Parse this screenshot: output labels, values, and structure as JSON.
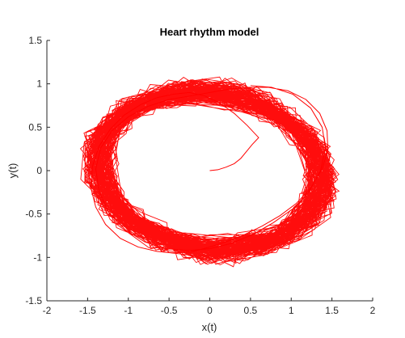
{
  "chart_data": {
    "type": "line",
    "title": "Heart rhythm model",
    "xlabel": "x(t)",
    "ylabel": "y(t)",
    "xlim": [
      -2,
      2
    ],
    "ylim": [
      -1.5,
      1.5
    ],
    "xticks": [
      -2,
      -1.5,
      -1,
      -0.5,
      0,
      0.5,
      1,
      1.5,
      2
    ],
    "xtick_labels": [
      "-2",
      "-1.5",
      "-1",
      "-0.5",
      "0",
      "0.5",
      "1",
      "1.5",
      "2"
    ],
    "yticks": [
      -1.5,
      -1,
      -0.5,
      0,
      0.5,
      1,
      1.5
    ],
    "ytick_labels": [
      "-1.5",
      "-1",
      "-0.5",
      "0",
      "0.5",
      "1",
      "1.5"
    ],
    "grid": false,
    "box": "left-bottom axes only",
    "series": [
      {
        "color": "#ff0000",
        "points": [
          [
            0.0,
            0.0
          ],
          [
            0.1,
            0.01
          ],
          [
            0.2,
            0.04
          ],
          [
            0.3,
            0.08
          ],
          [
            0.38,
            0.14
          ],
          [
            0.45,
            0.22
          ],
          [
            0.52,
            0.3
          ],
          [
            0.6,
            0.38
          ],
          [
            0.46,
            0.52
          ],
          [
            0.3,
            0.66
          ],
          [
            0.12,
            0.78
          ],
          [
            -0.06,
            0.86
          ],
          [
            -0.25,
            0.9
          ],
          [
            -0.45,
            0.88
          ],
          [
            -0.65,
            0.84
          ],
          [
            -0.85,
            0.76
          ],
          [
            -1.05,
            0.64
          ],
          [
            -1.22,
            0.48
          ],
          [
            -1.36,
            0.28
          ],
          [
            -1.44,
            0.05
          ],
          [
            -1.46,
            -0.2
          ],
          [
            -1.4,
            -0.42
          ],
          [
            -1.28,
            -0.62
          ],
          [
            -1.1,
            -0.78
          ],
          [
            -0.88,
            -0.88
          ],
          [
            -0.65,
            -0.93
          ],
          [
            -0.42,
            -0.95
          ],
          [
            -0.2,
            -0.93
          ],
          [
            0.0,
            -0.88
          ],
          [
            0.2,
            -0.82
          ],
          [
            0.42,
            -0.74
          ],
          [
            0.64,
            -0.64
          ],
          [
            0.86,
            -0.52
          ],
          [
            1.06,
            -0.38
          ],
          [
            1.24,
            -0.2
          ],
          [
            1.38,
            0.02
          ],
          [
            1.45,
            0.24
          ],
          [
            1.44,
            0.46
          ],
          [
            1.35,
            0.66
          ],
          [
            1.18,
            0.82
          ],
          [
            0.96,
            0.92
          ],
          [
            0.72,
            0.96
          ],
          [
            0.48,
            0.96
          ],
          [
            0.24,
            0.94
          ],
          [
            0.0,
            0.9
          ],
          [
            -0.24,
            0.86
          ],
          [
            -0.5,
            0.82
          ],
          [
            -0.76,
            0.74
          ],
          [
            -1.0,
            0.62
          ],
          [
            -1.2,
            0.46
          ],
          [
            -1.34,
            0.26
          ],
          [
            -1.4,
            0.02
          ],
          [
            -1.36,
            -0.24
          ],
          [
            -1.24,
            -0.48
          ],
          [
            -1.04,
            -0.68
          ],
          [
            -0.8,
            -0.82
          ],
          [
            -0.54,
            -0.9
          ],
          [
            -0.26,
            -0.92
          ],
          [
            0.0,
            -0.9
          ],
          [
            0.26,
            -0.84
          ],
          [
            0.52,
            -0.74
          ],
          [
            0.78,
            -0.6
          ],
          [
            1.02,
            -0.44
          ],
          [
            1.22,
            -0.24
          ],
          [
            1.36,
            0.0
          ],
          [
            1.42,
            0.26
          ],
          [
            1.38,
            0.5
          ],
          [
            1.24,
            0.72
          ],
          [
            1.02,
            0.88
          ],
          [
            0.76,
            0.96
          ],
          [
            0.5,
            0.98
          ]
        ]
      }
    ]
  }
}
